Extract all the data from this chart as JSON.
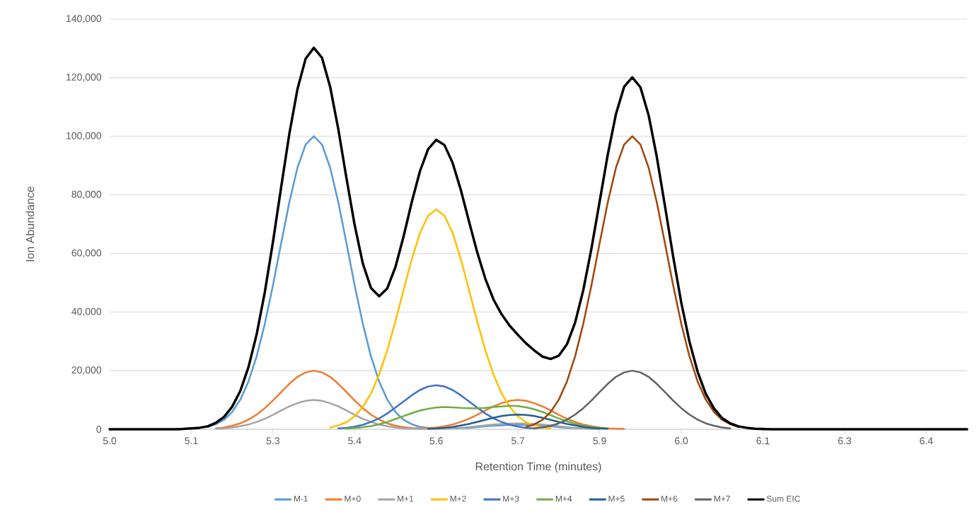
{
  "chart_data": {
    "type": "line",
    "xlabel": "Retention Time (minutes)",
    "ylabel": "Ion Abundance",
    "categories": [
      "5.0",
      null,
      null,
      null,
      null,
      null,
      null,
      null,
      null,
      null,
      "5.1",
      null,
      null,
      null,
      null,
      null,
      null,
      null,
      null,
      null,
      "5.3",
      null,
      null,
      null,
      null,
      null,
      null,
      null,
      null,
      null,
      "5.4",
      null,
      null,
      null,
      null,
      null,
      null,
      null,
      null,
      null,
      "5.6",
      null,
      null,
      null,
      null,
      null,
      null,
      null,
      null,
      null,
      "5.7",
      null,
      null,
      null,
      null,
      null,
      null,
      null,
      null,
      null,
      "5.9",
      null,
      null,
      null,
      null,
      null,
      null,
      null,
      null,
      null,
      "6.0",
      null,
      null,
      null,
      null,
      null,
      null,
      null,
      null,
      null,
      "6.1",
      null,
      null,
      null,
      null,
      null,
      null,
      null,
      null,
      null,
      "6.3",
      null,
      null,
      null,
      null,
      null,
      null,
      null,
      null,
      null,
      "6.4",
      null,
      null,
      null,
      null,
      null
    ],
    "ylim": [
      0,
      140000
    ],
    "yticks": [
      0,
      {
        "value": 20000,
        "label": "20,000"
      },
      {
        "value": 40000,
        "label": "40,000"
      },
      {
        "value": 60000,
        "label": "60,000"
      },
      {
        "value": 80000,
        "label": "80,000"
      },
      {
        "value": 100000,
        "label": "100,000"
      },
      {
        "value": 120000,
        "label": "120,000"
      },
      {
        "value": 140000,
        "label": "140,000"
      }
    ],
    "grid": "y",
    "legend": "bottom",
    "series": [
      {
        "name": "M-1",
        "color": "#5b9bd5",
        "values": [
          null,
          null,
          null,
          null,
          null,
          null,
          null,
          null,
          null,
          null,
          null,
          null,
          800,
          1700,
          3200,
          5900,
          10100,
          16300,
          24900,
          36000,
          49200,
          63500,
          77500,
          89300,
          97200,
          100000,
          97200,
          89300,
          77500,
          63500,
          49200,
          36000,
          24900,
          16300,
          10100,
          5900,
          3200,
          1700,
          800,
          500,
          300,
          300,
          300,
          400,
          500,
          700,
          1000,
          1200,
          1300,
          1500,
          1500,
          1500,
          1300,
          1200,
          1000,
          700,
          500,
          400,
          300,
          200,
          100,
          null,
          null,
          null,
          null,
          null,
          null,
          null,
          null,
          null,
          null,
          null,
          null,
          null,
          null,
          null,
          null,
          null,
          null,
          null,
          null,
          null,
          null,
          null,
          null,
          null,
          null,
          null,
          null,
          null,
          null,
          null,
          null,
          null,
          null,
          null,
          null,
          null,
          null,
          null,
          null,
          null,
          null,
          null,
          null,
          null
        ]
      },
      {
        "name": "M+0",
        "color": "#ed7d31",
        "values": [
          null,
          null,
          null,
          null,
          null,
          null,
          null,
          null,
          null,
          null,
          null,
          null,
          null,
          300,
          600,
          1200,
          2000,
          3300,
          5000,
          7200,
          9800,
          12700,
          15500,
          17900,
          19400,
          20000,
          19400,
          17900,
          15500,
          12700,
          9800,
          7200,
          5000,
          3300,
          2000,
          1200,
          700,
          400,
          300,
          400,
          600,
          1000,
          1600,
          2500,
          3600,
          4900,
          6400,
          7800,
          8900,
          9700,
          10000,
          9700,
          8900,
          7800,
          6400,
          4900,
          3600,
          2500,
          1600,
          1000,
          600,
          300,
          200,
          100,
          null,
          null,
          null,
          null,
          null,
          null,
          null,
          null,
          null,
          null,
          null,
          null,
          null,
          null,
          null,
          null,
          null,
          null,
          null,
          null,
          null,
          null,
          null,
          null,
          null,
          null,
          null,
          null,
          null,
          null,
          null,
          null,
          null,
          null,
          null,
          null,
          null,
          null,
          null,
          null,
          null,
          null
        ]
      },
      {
        "name": "M+1",
        "color": "#a5a5a5",
        "values": [
          null,
          null,
          null,
          null,
          null,
          null,
          null,
          null,
          null,
          null,
          null,
          null,
          null,
          200,
          300,
          600,
          1000,
          1600,
          2500,
          3600,
          4900,
          6400,
          7800,
          8900,
          9700,
          10000,
          9700,
          8900,
          7800,
          6400,
          4900,
          3600,
          2500,
          1600,
          1000,
          600,
          300,
          200,
          100,
          100,
          100,
          200,
          300,
          500,
          700,
          1000,
          1300,
          1600,
          1800,
          1900,
          2000,
          1900,
          1800,
          1600,
          1300,
          1000,
          700,
          500,
          300,
          200,
          100,
          null,
          null,
          null,
          null,
          null,
          null,
          null,
          null,
          null,
          null,
          null,
          null,
          null,
          null,
          null,
          null,
          null,
          null,
          null,
          null,
          null,
          null,
          null,
          null,
          null,
          null,
          null,
          null,
          null,
          null,
          null,
          null,
          null,
          null,
          null,
          null,
          null,
          null,
          null,
          null,
          null,
          null,
          null,
          null,
          null
        ]
      },
      {
        "name": "M+2",
        "color": "#ffc000",
        "values": [
          null,
          null,
          null,
          null,
          null,
          null,
          null,
          null,
          null,
          null,
          null,
          null,
          null,
          null,
          null,
          null,
          null,
          null,
          null,
          null,
          null,
          null,
          null,
          null,
          null,
          null,
          null,
          600,
          1300,
          2400,
          4400,
          7600,
          12200,
          18700,
          27000,
          36900,
          47600,
          58100,
          67000,
          72900,
          75000,
          72900,
          67000,
          58100,
          47600,
          36900,
          27000,
          18700,
          12200,
          7600,
          4400,
          2400,
          1300,
          600,
          300,
          null,
          null,
          null,
          null,
          null,
          null,
          null,
          null,
          null,
          null,
          null,
          null,
          null,
          null,
          null,
          null,
          null,
          null,
          null,
          null,
          null,
          null,
          null,
          null,
          null,
          null,
          null,
          null,
          null,
          null,
          null,
          null,
          null,
          null,
          null,
          null,
          null,
          null,
          null,
          null,
          null,
          null,
          null,
          null,
          null,
          null,
          null,
          null,
          null,
          null,
          null
        ]
      },
      {
        "name": "M+3",
        "color": "#4472c4",
        "values": [
          null,
          null,
          null,
          null,
          null,
          null,
          null,
          null,
          null,
          null,
          null,
          null,
          null,
          null,
          null,
          null,
          null,
          null,
          null,
          null,
          null,
          null,
          null,
          null,
          null,
          null,
          null,
          null,
          300,
          500,
          900,
          1500,
          2500,
          3700,
          5400,
          7400,
          9500,
          11600,
          13400,
          14600,
          15000,
          14600,
          13400,
          11600,
          9500,
          7400,
          5400,
          3700,
          2500,
          1500,
          900,
          500,
          300,
          null,
          null,
          null,
          null,
          null,
          null,
          null,
          null,
          null,
          null,
          null,
          null,
          null,
          null,
          null,
          null,
          null,
          null,
          null,
          null,
          null,
          null,
          null,
          null,
          null,
          null,
          null,
          null,
          null,
          null,
          null,
          null,
          null,
          null,
          null,
          null,
          null,
          null,
          null,
          null,
          null,
          null,
          null,
          null,
          null,
          null,
          null,
          null,
          null,
          null,
          null,
          null,
          null
        ]
      },
      {
        "name": "M+4",
        "color": "#70ad47",
        "values": [
          null,
          null,
          null,
          null,
          null,
          null,
          null,
          null,
          null,
          null,
          null,
          null,
          null,
          null,
          null,
          null,
          null,
          null,
          null,
          null,
          null,
          null,
          null,
          null,
          null,
          null,
          null,
          null,
          null,
          200,
          400,
          700,
          1100,
          1700,
          2500,
          3500,
          4500,
          5500,
          6400,
          7000,
          7400,
          7600,
          7500,
          7300,
          7200,
          7100,
          7300,
          7600,
          7800,
          8000,
          7900,
          7500,
          6800,
          5900,
          4800,
          3700,
          2700,
          1900,
          1200,
          800,
          400,
          200,
          null,
          null,
          null,
          null,
          null,
          null,
          null,
          null,
          null,
          null,
          null,
          null,
          null,
          null,
          null,
          null,
          null,
          null,
          null,
          null,
          null,
          null,
          null,
          null,
          null,
          null,
          null,
          null,
          null,
          null,
          null,
          null,
          null,
          null,
          null,
          null,
          null,
          null,
          null,
          null,
          null,
          null,
          null,
          null
        ]
      },
      {
        "name": "M+5",
        "color": "#255e91",
        "values": [
          null,
          null,
          null,
          null,
          null,
          null,
          null,
          null,
          null,
          null,
          null,
          null,
          null,
          null,
          null,
          null,
          null,
          null,
          null,
          null,
          null,
          null,
          null,
          null,
          null,
          null,
          null,
          null,
          null,
          null,
          null,
          null,
          null,
          null,
          null,
          null,
          null,
          null,
          null,
          200,
          300,
          500,
          800,
          1300,
          1800,
          2500,
          3200,
          3900,
          4500,
          4900,
          5000,
          4900,
          4500,
          3900,
          3200,
          2500,
          1800,
          1300,
          800,
          500,
          300,
          200,
          null,
          null,
          null,
          null,
          null,
          null,
          null,
          null,
          null,
          null,
          null,
          null,
          null,
          null,
          null,
          null,
          null,
          null,
          null,
          null,
          null,
          null,
          null,
          null,
          null,
          null,
          null,
          null,
          null,
          null,
          null,
          null,
          null,
          null,
          null,
          null,
          null,
          null,
          null,
          null,
          null,
          null,
          null,
          null
        ]
      },
      {
        "name": "M+6",
        "color": "#9e480e",
        "values": [
          null,
          null,
          null,
          null,
          null,
          null,
          null,
          null,
          null,
          null,
          null,
          null,
          null,
          null,
          null,
          null,
          null,
          null,
          null,
          null,
          null,
          null,
          null,
          null,
          null,
          null,
          null,
          null,
          null,
          null,
          null,
          null,
          null,
          null,
          null,
          null,
          null,
          null,
          null,
          null,
          null,
          null,
          null,
          null,
          null,
          null,
          null,
          null,
          null,
          null,
          null,
          800,
          1700,
          3200,
          5900,
          10100,
          16300,
          24900,
          36000,
          49200,
          63500,
          77500,
          89300,
          97200,
          100000,
          97200,
          89300,
          77500,
          63500,
          49200,
          36000,
          24900,
          16300,
          10100,
          5900,
          3200,
          1700,
          800,
          null,
          null,
          null,
          null,
          null,
          null,
          null,
          null,
          null,
          null,
          null,
          null,
          null,
          null,
          null,
          null,
          null,
          null,
          null,
          null,
          null,
          null,
          null,
          null,
          null,
          null,
          null,
          null
        ]
      },
      {
        "name": "M+7",
        "color": "#636363",
        "values": [
          null,
          null,
          null,
          null,
          null,
          null,
          null,
          null,
          null,
          null,
          null,
          null,
          null,
          null,
          null,
          null,
          null,
          null,
          null,
          null,
          null,
          null,
          null,
          null,
          null,
          null,
          null,
          null,
          null,
          null,
          null,
          null,
          null,
          null,
          null,
          null,
          null,
          null,
          null,
          null,
          null,
          null,
          null,
          null,
          null,
          null,
          null,
          null,
          null,
          null,
          null,
          null,
          300,
          600,
          1200,
          2000,
          3300,
          5000,
          7200,
          9800,
          12700,
          15500,
          17900,
          19400,
          20000,
          19400,
          17900,
          15500,
          12700,
          9800,
          7200,
          5000,
          3300,
          2000,
          1200,
          600,
          300,
          null,
          null,
          null,
          null,
          null,
          null,
          null,
          null,
          null,
          null,
          null,
          null,
          null,
          null,
          null,
          null,
          null,
          null,
          null,
          null,
          null,
          null,
          null,
          null,
          null,
          null,
          null,
          null,
          null
        ]
      },
      {
        "name": "Sum EIC",
        "color": "#000000",
        "values": [
          0,
          0,
          0,
          0,
          0,
          0,
          0,
          0,
          0,
          100,
          300,
          500,
          1000,
          2200,
          4200,
          7700,
          13100,
          21200,
          32400,
          46800,
          64000,
          82600,
          100800,
          116100,
          126500,
          130200,
          126800,
          116900,
          102400,
          85700,
          69700,
          56600,
          48200,
          45400,
          48100,
          55400,
          65900,
          77600,
          88100,
          95600,
          98800,
          97000,
          90900,
          81700,
          71000,
          60500,
          51400,
          44300,
          39200,
          35300,
          32200,
          29300,
          26900,
          24800,
          24000,
          25100,
          29000,
          36400,
          47500,
          61700,
          77700,
          93800,
          107600,
          116900,
          120100,
          116700,
          107200,
          93000,
          76200,
          59000,
          43200,
          29900,
          19600,
          12100,
          7100,
          3800,
          2000,
          1000,
          500,
          200,
          100,
          0,
          0,
          0,
          0,
          0,
          0,
          0,
          0,
          0,
          0,
          0,
          0,
          0,
          0,
          0,
          0,
          0,
          0,
          0,
          0,
          0,
          0,
          0,
          0,
          0
        ]
      }
    ]
  }
}
